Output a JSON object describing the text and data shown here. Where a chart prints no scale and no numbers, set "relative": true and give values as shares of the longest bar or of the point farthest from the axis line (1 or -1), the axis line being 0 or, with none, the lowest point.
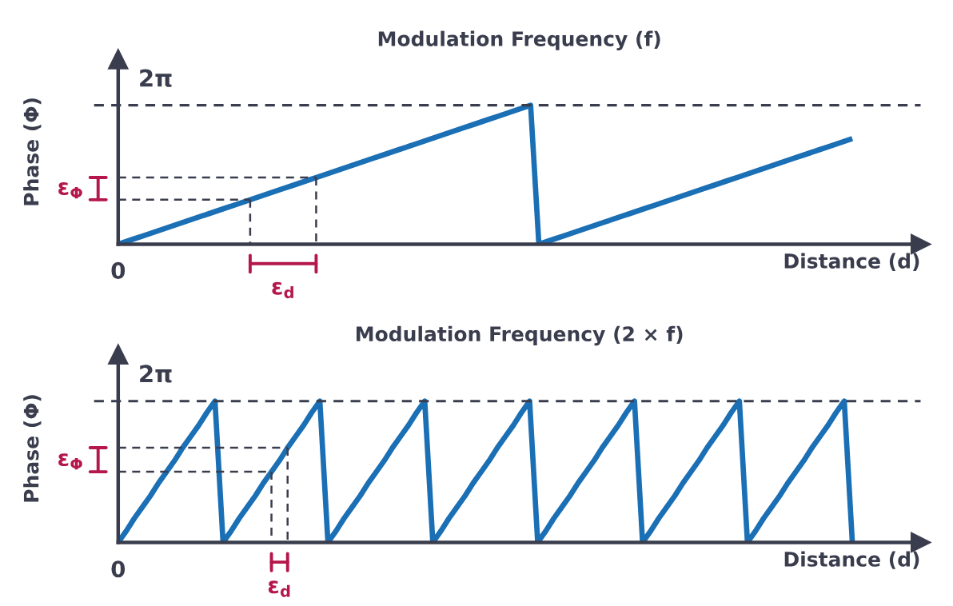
{
  "chart_data": [
    {
      "type": "line",
      "title": "Modulation Frequency (f)",
      "xlabel": "Distance (d)",
      "ylabel": "Phase (Φ)",
      "relative": true,
      "categories": [
        null,
        null,
        null,
        null,
        null,
        null,
        null,
        null,
        null,
        null,
        null,
        null,
        null,
        null,
        null,
        null,
        null,
        null,
        null,
        null,
        null,
        null,
        null,
        null,
        null,
        null,
        null,
        null,
        null,
        null,
        null,
        null,
        null,
        null,
        null,
        null,
        null,
        null,
        null,
        null,
        null,
        null,
        null,
        null,
        null,
        null,
        null,
        null,
        null,
        null,
        null,
        null,
        null,
        null,
        null,
        null,
        null,
        null,
        null,
        null,
        null,
        null,
        null,
        null,
        null,
        null,
        null,
        null,
        null,
        null,
        null,
        null,
        null,
        null,
        null,
        null,
        null,
        null,
        null,
        null,
        null,
        null,
        null,
        null,
        null,
        null,
        null,
        null,
        null,
        null
      ],
      "series": [
        {
          "color": "#1a6fb5",
          "values": [
            0,
            0.02,
            0.04,
            0.06,
            0.08,
            0.1,
            0.12,
            0.14,
            0.16,
            0.18,
            0.2,
            0.22,
            0.24,
            0.26,
            0.28,
            0.3,
            0.32,
            0.34,
            0.36,
            0.38,
            0.4,
            0.42,
            0.44,
            0.46,
            0.48,
            0.5,
            0.52,
            0.54,
            0.56,
            0.58,
            0.6,
            0.62,
            0.64,
            0.66,
            0.68,
            0.7,
            0.72,
            0.74,
            0.76,
            0.78,
            0.8,
            0.82,
            0.84,
            0.86,
            0.88,
            0.9,
            0.92,
            0.94,
            0.96,
            0.98,
            1,
            0,
            0.02,
            0.04,
            0.06,
            0.08,
            0.1,
            0.12,
            0.14,
            0.16,
            0.18,
            0.2,
            0.22,
            0.24,
            0.26,
            0.28,
            0.3,
            0.32,
            0.34,
            0.36,
            0.38,
            0.4,
            0.42,
            0.44,
            0.46,
            0.48,
            0.5,
            0.52,
            0.54,
            0.56,
            0.58,
            0.6,
            0.62,
            0.64,
            0.66,
            0.68,
            0.7,
            0.72,
            0.74,
            0.76
          ]
        },
        {
          "color": "#3a3d4d",
          "line_style": "dashed",
          "values": [
            0.32,
            0.32,
            0.32,
            0.32,
            0.32,
            0.32,
            0.32,
            0.32,
            0.32,
            0.32,
            0.32,
            0.32,
            0.32,
            0.32,
            0.32,
            0.32,
            0.32,
            null,
            null,
            null,
            null,
            null,
            null,
            null,
            null,
            null,
            null,
            null,
            null,
            null,
            null,
            null,
            null,
            null,
            null,
            null,
            null,
            null,
            null,
            null,
            null,
            null,
            null,
            null,
            null,
            null,
            null,
            null,
            null,
            null,
            null,
            null,
            null,
            null,
            null,
            null,
            null,
            null,
            null,
            null,
            null,
            null,
            null,
            null,
            null,
            null,
            null,
            null,
            null,
            null,
            null,
            null,
            null,
            null,
            null,
            null,
            null,
            null,
            null,
            null,
            null,
            null,
            null,
            null,
            null,
            null,
            null,
            null,
            null,
            null
          ]
        },
        {
          "color": "#3a3d4d",
          "line_style": "dashed",
          "values": [
            0.48,
            0.48,
            0.48,
            0.48,
            0.48,
            0.48,
            0.48,
            0.48,
            0.48,
            0.48,
            0.48,
            0.48,
            0.48,
            0.48,
            0.48,
            0.48,
            0.48,
            0.48,
            0.48,
            0.48,
            0.48,
            0.48,
            0.48,
            0.48,
            0.48,
            null,
            null,
            null,
            null,
            null,
            null,
            null,
            null,
            null,
            null,
            null,
            null,
            null,
            null,
            null,
            null,
            null,
            null,
            null,
            null,
            null,
            null,
            null,
            null,
            null,
            null,
            null,
            null,
            null,
            null,
            null,
            null,
            null,
            null,
            null,
            null,
            null,
            null,
            null,
            null,
            null,
            null,
            null,
            null,
            null,
            null,
            null,
            null,
            null,
            null,
            null,
            null,
            null,
            null,
            null,
            null,
            null,
            null,
            null,
            null,
            null,
            null,
            null,
            null,
            null
          ]
        }
      ],
      "ref_lines": [
        {
          "axis": "y",
          "value": 1,
          "label": "2π",
          "color": "#3a3d4d",
          "line_style": "dashed"
        }
      ],
      "annotations": [
        "0",
        "ε$_{Φ}$",
        "ε$_{d}$"
      ]
    },
    {
      "type": "line",
      "title": "Modulation Frequency (2 × f)",
      "xlabel": "Distance (d)",
      "ylabel": "Phase (Φ)",
      "relative": true,
      "categories": [
        null,
        null,
        null,
        null,
        null,
        null,
        null,
        null,
        null,
        null,
        null,
        null,
        null,
        null,
        null,
        null,
        null,
        null,
        null,
        null,
        null,
        null,
        null,
        null,
        null,
        null,
        null,
        null,
        null,
        null,
        null,
        null,
        null,
        null,
        null,
        null,
        null,
        null,
        null,
        null,
        null,
        null,
        null,
        null,
        null,
        null,
        null,
        null,
        null,
        null,
        null,
        null,
        null,
        null,
        null,
        null,
        null,
        null,
        null,
        null,
        null,
        null,
        null,
        null,
        null,
        null,
        null,
        null,
        null,
        null,
        null,
        null,
        null,
        null,
        null,
        null,
        null,
        null,
        null,
        null,
        null,
        null,
        null,
        null,
        null,
        null,
        null,
        null,
        null,
        null,
        null,
        null
      ],
      "series": [
        {
          "color": "#1a6fb5",
          "values": [
            0,
            0.08,
            0.17,
            0.25,
            0.33,
            0.42,
            0.5,
            0.58,
            0.67,
            0.75,
            0.83,
            0.92,
            1,
            0,
            0.08,
            0.17,
            0.25,
            0.33,
            0.42,
            0.5,
            0.58,
            0.67,
            0.75,
            0.83,
            0.92,
            1,
            0,
            0.08,
            0.17,
            0.25,
            0.33,
            0.42,
            0.5,
            0.58,
            0.67,
            0.75,
            0.83,
            0.92,
            1,
            0,
            0.08,
            0.17,
            0.25,
            0.33,
            0.42,
            0.5,
            0.58,
            0.67,
            0.75,
            0.83,
            0.92,
            1,
            0,
            0.08,
            0.17,
            0.25,
            0.33,
            0.42,
            0.5,
            0.58,
            0.67,
            0.75,
            0.83,
            0.92,
            1,
            0,
            0.08,
            0.17,
            0.25,
            0.33,
            0.42,
            0.5,
            0.58,
            0.67,
            0.75,
            0.83,
            0.92,
            1,
            0,
            0.08,
            0.17,
            0.25,
            0.33,
            0.42,
            0.5,
            0.58,
            0.67,
            0.75,
            0.83,
            0.92,
            1,
            0
          ]
        },
        {
          "color": "#3a3d4d",
          "line_style": "dashed",
          "values": [
            0.5,
            0.5,
            0.5,
            0.5,
            0.5,
            0.5,
            0.5,
            0.5,
            0.5,
            0.5,
            0.5,
            0.5,
            0.5,
            0.5,
            0.5,
            0.5,
            0.5,
            0.5,
            0.5,
            0.5,
            null,
            null,
            null,
            null,
            null,
            null,
            null,
            null,
            null,
            null,
            null,
            null,
            null,
            null,
            null,
            null,
            null,
            null,
            null,
            null,
            null,
            null,
            null,
            null,
            null,
            null,
            null,
            null,
            null,
            null,
            null,
            null,
            null,
            null,
            null,
            null,
            null,
            null,
            null,
            null,
            null,
            null,
            null,
            null,
            null,
            null,
            null,
            null,
            null,
            null,
            null,
            null,
            null,
            null,
            null,
            null,
            null,
            null,
            null,
            null,
            null,
            null,
            null,
            null,
            null,
            null,
            null,
            null,
            null,
            null,
            null,
            null
          ]
        },
        {
          "color": "#3a3d4d",
          "line_style": "dashed",
          "values": [
            0.67,
            0.67,
            0.67,
            0.67,
            0.67,
            0.67,
            0.67,
            0.67,
            0.67,
            0.67,
            0.67,
            0.67,
            0.67,
            0.67,
            0.67,
            0.67,
            0.67,
            0.67,
            0.67,
            0.67,
            0.67,
            0.67,
            null,
            null,
            null,
            null,
            null,
            null,
            null,
            null,
            null,
            null,
            null,
            null,
            null,
            null,
            null,
            null,
            null,
            null,
            null,
            null,
            null,
            null,
            null,
            null,
            null,
            null,
            null,
            null,
            null,
            null,
            null,
            null,
            null,
            null,
            null,
            null,
            null,
            null,
            null,
            null,
            null,
            null,
            null,
            null,
            null,
            null,
            null,
            null,
            null,
            null,
            null,
            null,
            null,
            null,
            null,
            null,
            null,
            null,
            null,
            null,
            null,
            null,
            null,
            null,
            null,
            null,
            null,
            null,
            null,
            null
          ]
        }
      ],
      "ref_lines": [
        {
          "axis": "y",
          "value": 1,
          "label": "2π",
          "color": "#3a3d4d",
          "line_style": "dashed"
        }
      ],
      "annotations": [
        "0",
        "ε$_{Φ}$",
        "ε$_{d}$"
      ]
    }
  ]
}
